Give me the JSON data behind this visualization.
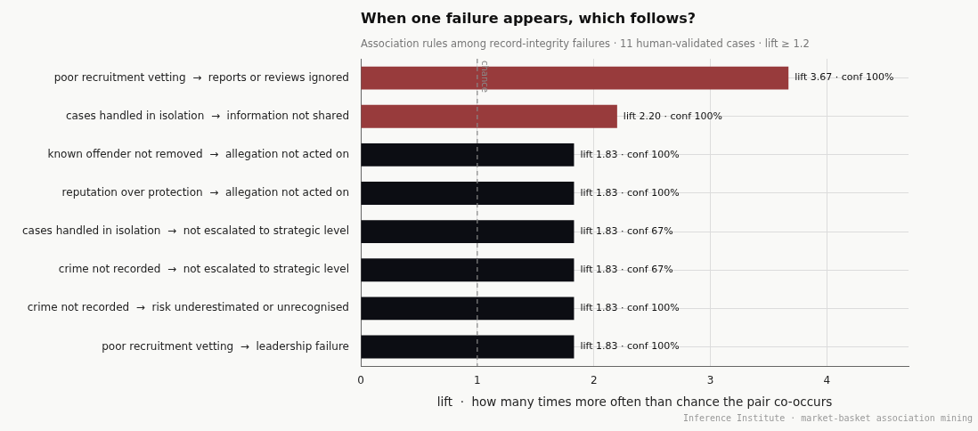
{
  "chart_data": {
    "type": "bar",
    "orientation": "horizontal",
    "title": "When one failure appears, which follows?",
    "subtitle": "Association rules among record-integrity failures · 11 human-validated cases · lift ≥ 1.2",
    "xlabel": "lift  ·  how many times more often than chance the pair co-occurs",
    "categories": [
      "poor recruitment vetting  →  reports or reviews ignored",
      "cases handled in isolation  →  information not shared",
      "known offender not removed  →  allegation not acted on",
      "reputation over protection  →  allegation not acted on",
      "cases handled in isolation  →  not escalated to strategic level",
      "crime not recorded  →  not escalated to strategic level",
      "crime not recorded  →  risk underestimated or unrecognised",
      "poor recruitment vetting  →  leadership failure"
    ],
    "values": [
      3.67,
      2.2,
      1.83,
      1.83,
      1.83,
      1.83,
      1.83,
      1.83
    ],
    "colors": [
      "#983b3c",
      "#983b3c",
      "#0c0d13",
      "#0c0d13",
      "#0c0d13",
      "#0c0d13",
      "#0c0d13",
      "#0c0d13"
    ],
    "value_labels": [
      "lift 3.67 · conf 100%",
      "lift 2.20 · conf 100%",
      "lift 1.83 · conf 100%",
      "lift 1.83 · conf 100%",
      "lift 1.83 · conf 67%",
      "lift 1.83 · conf 67%",
      "lift 1.83 · conf 100%",
      "lift 1.83 · conf 100%"
    ],
    "xlim": [
      0,
      4.7
    ],
    "xticks": [
      0,
      1,
      2,
      3,
      4
    ],
    "grid": true,
    "ref_lines": [
      {
        "axis": "x",
        "value": 1,
        "label": "chance",
        "color": "#888888",
        "line_style": "dashed"
      }
    ],
    "annotations": [
      "Inference Institute · market-basket association mining"
    ]
  }
}
